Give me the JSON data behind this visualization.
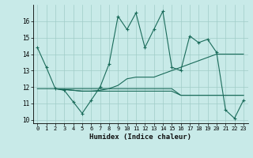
{
  "xlabel": "Humidex (Indice chaleur)",
  "xlim": [
    -0.5,
    23.5
  ],
  "ylim": [
    9.8,
    17.0
  ],
  "yticks": [
    10,
    11,
    12,
    13,
    14,
    15,
    16
  ],
  "xticks": [
    0,
    1,
    2,
    3,
    4,
    5,
    6,
    7,
    8,
    9,
    10,
    11,
    12,
    13,
    14,
    15,
    16,
    17,
    18,
    19,
    20,
    21,
    22,
    23
  ],
  "bg_color": "#c8eae8",
  "grid_color": "#a0ccc8",
  "line_color": "#1a6b5a",
  "line1_x": [
    0,
    1,
    2,
    3,
    4,
    5,
    6,
    7,
    8,
    9,
    10,
    11,
    12,
    13,
    14,
    15,
    16,
    17,
    18,
    19,
    20,
    21,
    22,
    23
  ],
  "line1_y": [
    14.4,
    13.2,
    11.9,
    11.8,
    11.1,
    10.4,
    11.2,
    12.0,
    13.4,
    16.3,
    15.5,
    16.5,
    14.4,
    15.5,
    16.6,
    13.2,
    13.0,
    15.1,
    14.7,
    14.9,
    14.1,
    10.6,
    10.1,
    11.2
  ],
  "line2_x": [
    2,
    3,
    4,
    5,
    6,
    7,
    8,
    9,
    10,
    11,
    12,
    13,
    14,
    15,
    16,
    17,
    18,
    19,
    20,
    21,
    22,
    23
  ],
  "line2_y": [
    11.9,
    11.85,
    11.8,
    11.75,
    11.75,
    11.75,
    11.75,
    11.75,
    11.75,
    11.75,
    11.75,
    11.75,
    11.75,
    11.75,
    11.5,
    11.5,
    11.5,
    11.5,
    11.5,
    11.5,
    11.5,
    11.5
  ],
  "line3_x": [
    2,
    3,
    4,
    5,
    6,
    7,
    8,
    9,
    10,
    11,
    12,
    13,
    14,
    15,
    16,
    17,
    18,
    19,
    20,
    21,
    22,
    23
  ],
  "line3_y": [
    11.9,
    11.85,
    11.8,
    11.75,
    11.75,
    11.8,
    11.9,
    12.1,
    12.5,
    12.6,
    12.6,
    12.6,
    12.8,
    13.0,
    13.2,
    13.4,
    13.6,
    13.8,
    14.0,
    14.0,
    14.0,
    14.0
  ],
  "line4_x": [
    0,
    1,
    2,
    3,
    4,
    5,
    6,
    7,
    8,
    9,
    10,
    11,
    12,
    13,
    14,
    15,
    16,
    17,
    18,
    19,
    20,
    21,
    22,
    23
  ],
  "line4_y": [
    11.9,
    11.9,
    11.9,
    11.9,
    11.9,
    11.9,
    11.9,
    11.9,
    11.9,
    11.9,
    11.9,
    11.9,
    11.9,
    11.9,
    11.9,
    11.9,
    11.5,
    11.5,
    11.5,
    11.5,
    11.5,
    11.5,
    11.5,
    11.5
  ]
}
